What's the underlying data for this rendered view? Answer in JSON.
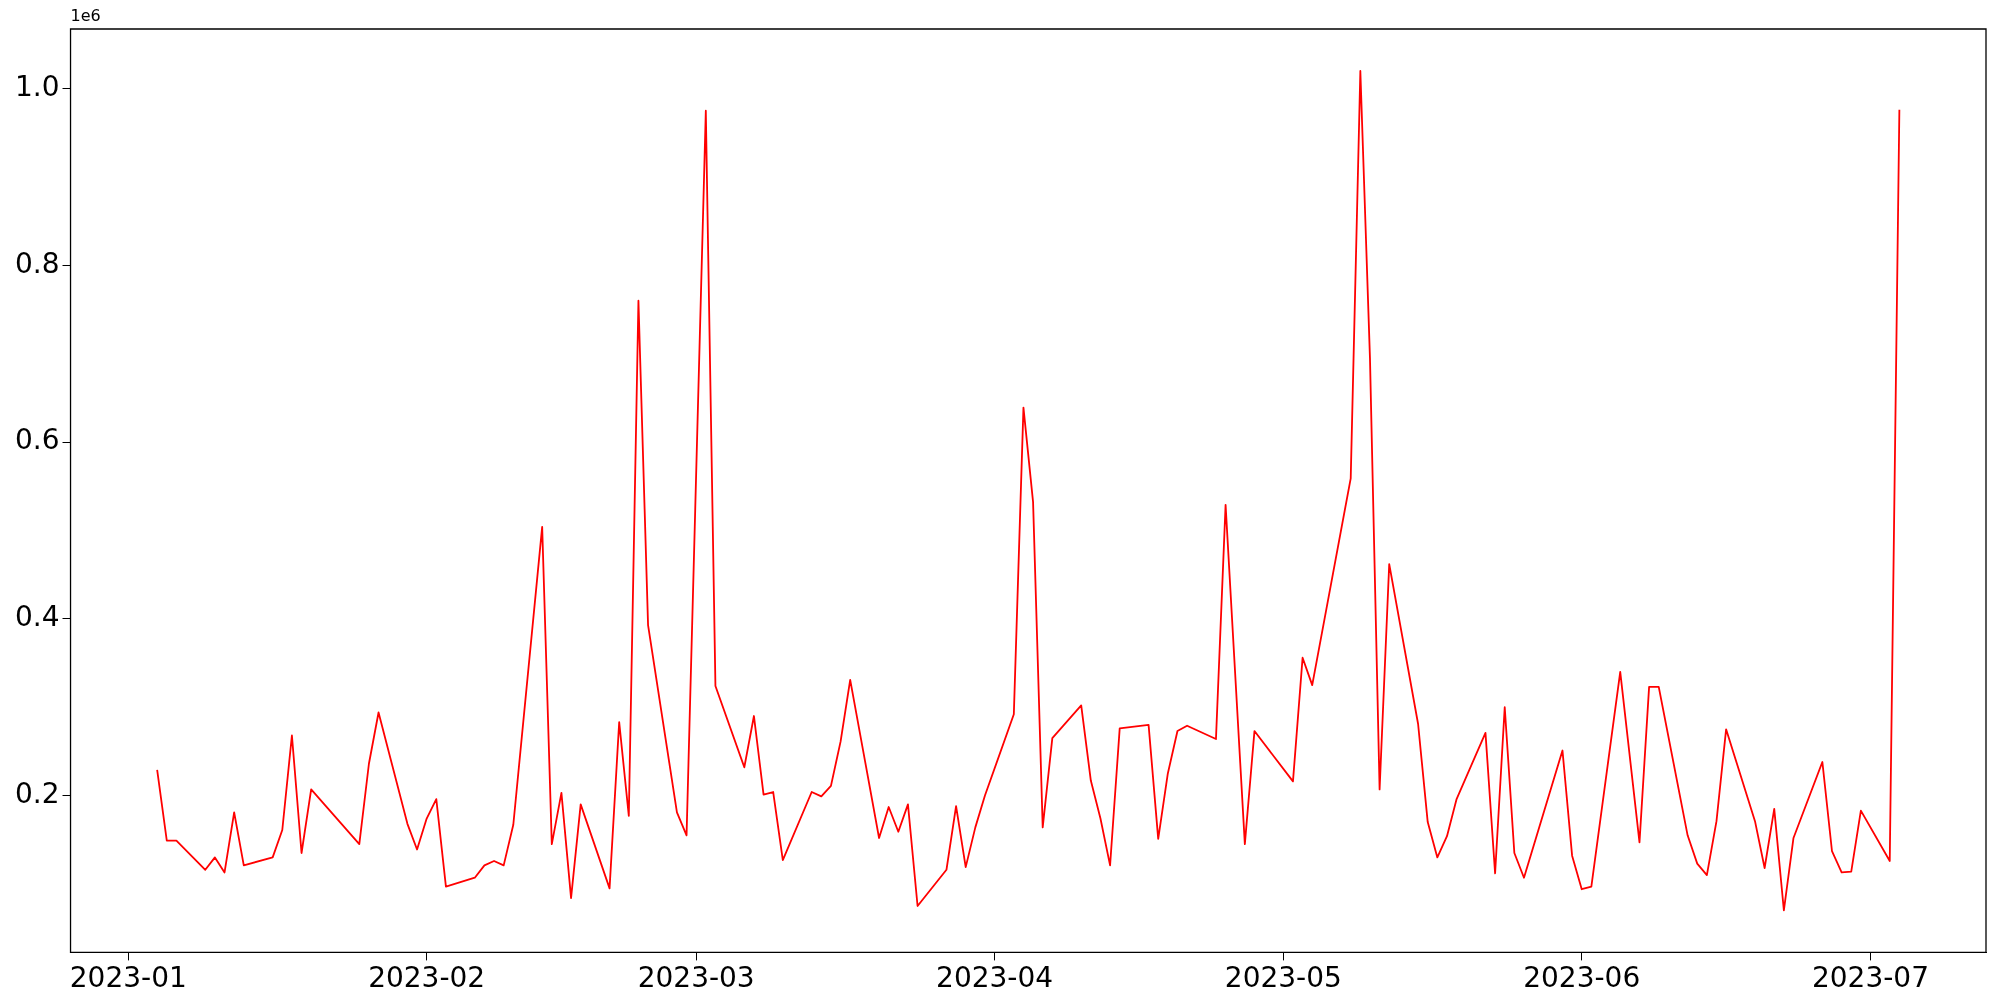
{
  "chart_data": {
    "type": "line",
    "annotations": [
      "1e6"
    ],
    "xlim": [
      "2022-12-26",
      "2023-07-13"
    ],
    "ylim": [
      0.0225,
      1.0675
    ],
    "xticks": [
      {
        "value": "2023-01-01",
        "label": "2023-01"
      },
      {
        "value": "2023-02-01",
        "label": "2023-02"
      },
      {
        "value": "2023-03-01",
        "label": "2023-03"
      },
      {
        "value": "2023-04-01",
        "label": "2023-04"
      },
      {
        "value": "2023-05-01",
        "label": "2023-05"
      },
      {
        "value": "2023-06-01",
        "label": "2023-06"
      },
      {
        "value": "2023-07-01",
        "label": "2023-07"
      }
    ],
    "yticks": [
      0.2,
      0.4,
      0.6,
      0.8,
      {
        "value": 1,
        "label": "1.0"
      }
    ],
    "grid": false,
    "legend": false,
    "marker": "none",
    "line_style": "solid",
    "x": [
      "2023-01-04",
      "2023-01-05",
      "2023-01-06",
      "2023-01-09",
      "2023-01-10",
      "2023-01-11",
      "2023-01-12",
      "2023-01-13",
      "2023-01-16",
      "2023-01-17",
      "2023-01-18",
      "2023-01-19",
      "2023-01-20",
      "2023-01-25",
      "2023-01-26",
      "2023-01-27",
      "2023-01-30",
      "2023-01-31",
      "2023-02-01",
      "2023-02-02",
      "2023-02-03",
      "2023-02-06",
      "2023-02-07",
      "2023-02-08",
      "2023-02-09",
      "2023-02-10",
      "2023-02-13",
      "2023-02-14",
      "2023-02-15",
      "2023-02-16",
      "2023-02-17",
      "2023-02-20",
      "2023-02-21",
      "2023-02-22",
      "2023-02-23",
      "2023-02-24",
      "2023-02-27",
      "2023-02-28",
      "2023-03-02",
      "2023-03-03",
      "2023-03-06",
      "2023-03-07",
      "2023-03-08",
      "2023-03-09",
      "2023-03-10",
      "2023-03-13",
      "2023-03-14",
      "2023-03-15",
      "2023-03-16",
      "2023-03-17",
      "2023-03-20",
      "2023-03-21",
      "2023-03-22",
      "2023-03-23",
      "2023-03-24",
      "2023-03-27",
      "2023-03-28",
      "2023-03-29",
      "2023-03-30",
      "2023-03-31",
      "2023-04-03",
      "2023-04-04",
      "2023-04-05",
      "2023-04-06",
      "2023-04-07",
      "2023-04-10",
      "2023-04-11",
      "2023-04-12",
      "2023-04-13",
      "2023-04-14",
      "2023-04-17",
      "2023-04-18",
      "2023-04-19",
      "2023-04-20",
      "2023-04-21",
      "2023-04-24",
      "2023-04-25",
      "2023-04-27",
      "2023-04-28",
      "2023-05-02",
      "2023-05-03",
      "2023-05-04",
      "2023-05-08",
      "2023-05-09",
      "2023-05-10",
      "2023-05-11",
      "2023-05-12",
      "2023-05-15",
      "2023-05-16",
      "2023-05-17",
      "2023-05-18",
      "2023-05-19",
      "2023-05-22",
      "2023-05-23",
      "2023-05-24",
      "2023-05-25",
      "2023-05-26",
      "2023-05-30",
      "2023-05-31",
      "2023-06-01",
      "2023-06-02",
      "2023-06-05",
      "2023-06-07",
      "2023-06-08",
      "2023-06-09",
      "2023-06-12",
      "2023-06-13",
      "2023-06-14",
      "2023-06-15",
      "2023-06-16",
      "2023-06-19",
      "2023-06-20",
      "2023-06-21",
      "2023-06-22",
      "2023-06-23",
      "2023-06-26",
      "2023-06-27",
      "2023-06-28",
      "2023-06-29",
      "2023-06-30",
      "2023-07-03",
      "2023-07-04"
    ],
    "series": [
      {
        "color": "#ff0000",
        "values": [
          0.229,
          0.149,
          0.149,
          0.116,
          0.13,
          0.113,
          0.181,
          0.121,
          0.13,
          0.161,
          0.268,
          0.135,
          0.207,
          0.145,
          0.236,
          0.294,
          0.168,
          0.139,
          0.174,
          0.196,
          0.097,
          0.107,
          0.121,
          0.126,
          0.121,
          0.167,
          0.504,
          0.145,
          0.203,
          0.084,
          0.19,
          0.095,
          0.283,
          0.177,
          0.76,
          0.393,
          0.181,
          0.155,
          0.975,
          0.324,
          0.232,
          0.29,
          0.201,
          0.204,
          0.127,
          0.204,
          0.199,
          0.211,
          0.261,
          0.331,
          0.152,
          0.187,
          0.159,
          0.19,
          0.075,
          0.116,
          0.188,
          0.119,
          0.164,
          0.2,
          0.292,
          0.639,
          0.532,
          0.164,
          0.265,
          0.302,
          0.217,
          0.174,
          0.121,
          0.276,
          0.28,
          0.151,
          0.225,
          0.273,
          0.279,
          0.264,
          0.529,
          0.145,
          0.273,
          0.216,
          0.356,
          0.325,
          0.559,
          1.02,
          0.695,
          0.207,
          0.462,
          0.281,
          0.17,
          0.13,
          0.154,
          0.196,
          0.271,
          0.112,
          0.3,
          0.135,
          0.107,
          0.251,
          0.132,
          0.094,
          0.097,
          0.34,
          0.147,
          0.323,
          0.323,
          0.155,
          0.123,
          0.11,
          0.171,
          0.275,
          0.171,
          0.118,
          0.185,
          0.07,
          0.152,
          0.238,
          0.137,
          0.113,
          0.114,
          0.183,
          0.126,
          0.976
        ]
      }
    ]
  }
}
